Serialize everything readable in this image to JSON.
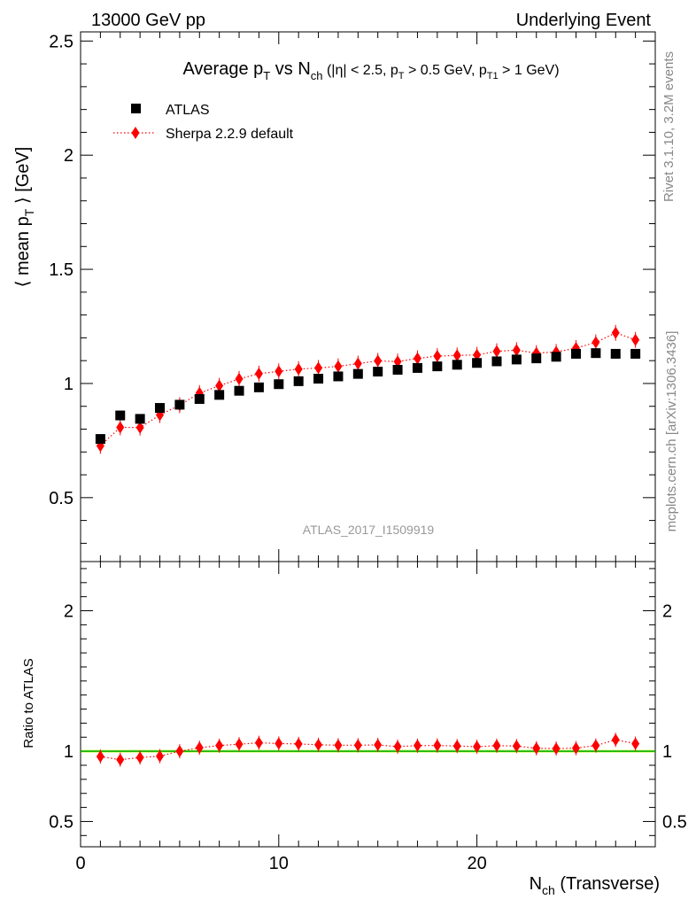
{
  "header": {
    "left": "13000 GeV pp",
    "right": "Underlying Event"
  },
  "side_labels": {
    "rivet": "Rivet 3.1.10,  3.2M events",
    "mcplots": "mcplots.cern.ch [arXiv:1306.3436]"
  },
  "watermark": "ATLAS_2017_I1509919",
  "colors": {
    "data": "#000000",
    "mc": "#ff0000",
    "band": "#ccff66",
    "ratio_line": "#00aa00",
    "side_text": "#888888"
  },
  "chart_data": [
    {
      "type": "scatter",
      "panel": "main",
      "title": "Average pT vs Nch (|η| < 2.5, pT > 0.5 GeV, pT1 > 1 GeV)",
      "ylabel": "⟨ mean pT ⟩ [GeV]",
      "xlim": [
        0,
        29
      ],
      "ylim": [
        0.22,
        2.54
      ],
      "yticks": [
        0.5,
        1,
        1.5,
        2,
        2.5
      ],
      "ytick_labels": [
        "0.5",
        "1",
        "1.5",
        "2",
        "2.5"
      ],
      "legend_position": "top-left",
      "series": [
        {
          "name": "ATLAS",
          "marker": "square",
          "x": [
            1,
            2,
            3,
            4,
            5,
            6,
            7,
            8,
            9,
            10,
            11,
            12,
            13,
            14,
            15,
            16,
            17,
            18,
            19,
            20,
            21,
            22,
            23,
            24,
            25,
            26,
            27,
            28
          ],
          "y": [
            0.757,
            0.86,
            0.845,
            0.893,
            0.907,
            0.932,
            0.95,
            0.968,
            0.983,
            0.997,
            1.01,
            1.021,
            1.031,
            1.042,
            1.052,
            1.06,
            1.068,
            1.075,
            1.082,
            1.09,
            1.097,
            1.105,
            1.11,
            1.117,
            1.13,
            1.133,
            1.13,
            1.13
          ]
        },
        {
          "name": "Sherpa 2.2.9 default",
          "marker": "diamond",
          "line": "dotted",
          "x": [
            1,
            2,
            3,
            4,
            5,
            6,
            7,
            8,
            9,
            10,
            11,
            12,
            13,
            14,
            15,
            16,
            17,
            18,
            19,
            20,
            21,
            22,
            23,
            24,
            25,
            26,
            27,
            28
          ],
          "y": [
            0.727,
            0.808,
            0.807,
            0.862,
            0.905,
            0.958,
            0.99,
            1.02,
            1.043,
            1.053,
            1.063,
            1.068,
            1.075,
            1.087,
            1.099,
            1.096,
            1.11,
            1.12,
            1.123,
            1.125,
            1.141,
            1.146,
            1.133,
            1.138,
            1.155,
            1.18,
            1.222,
            1.191
          ]
        }
      ]
    },
    {
      "type": "scatter",
      "panel": "ratio",
      "xlabel": "Nch (Transverse)",
      "ylabel": "Ratio to ATLAS",
      "xlim": [
        0,
        29
      ],
      "xticks": [
        0,
        10,
        20
      ],
      "xtick_labels": [
        "0",
        "10",
        "20"
      ],
      "ylim": [
        0.32,
        2.35
      ],
      "yticks": [
        0.5,
        1,
        2
      ],
      "ytick_labels": [
        "0.5",
        "1",
        "2"
      ],
      "reference": 1,
      "series": [
        {
          "name": "Sherpa 2.2.9 default",
          "marker": "diamond",
          "line": "dotted",
          "x": [
            1,
            2,
            3,
            4,
            5,
            6,
            7,
            8,
            9,
            10,
            11,
            12,
            13,
            14,
            15,
            16,
            17,
            18,
            19,
            20,
            21,
            22,
            23,
            24,
            25,
            26,
            27,
            28
          ],
          "y": [
            0.962,
            0.94,
            0.955,
            0.965,
            1.0,
            1.025,
            1.04,
            1.05,
            1.06,
            1.055,
            1.052,
            1.046,
            1.043,
            1.043,
            1.045,
            1.033,
            1.04,
            1.041,
            1.037,
            1.032,
            1.04,
            1.037,
            1.021,
            1.019,
            1.022,
            1.041,
            1.081,
            1.054
          ]
        }
      ]
    }
  ]
}
